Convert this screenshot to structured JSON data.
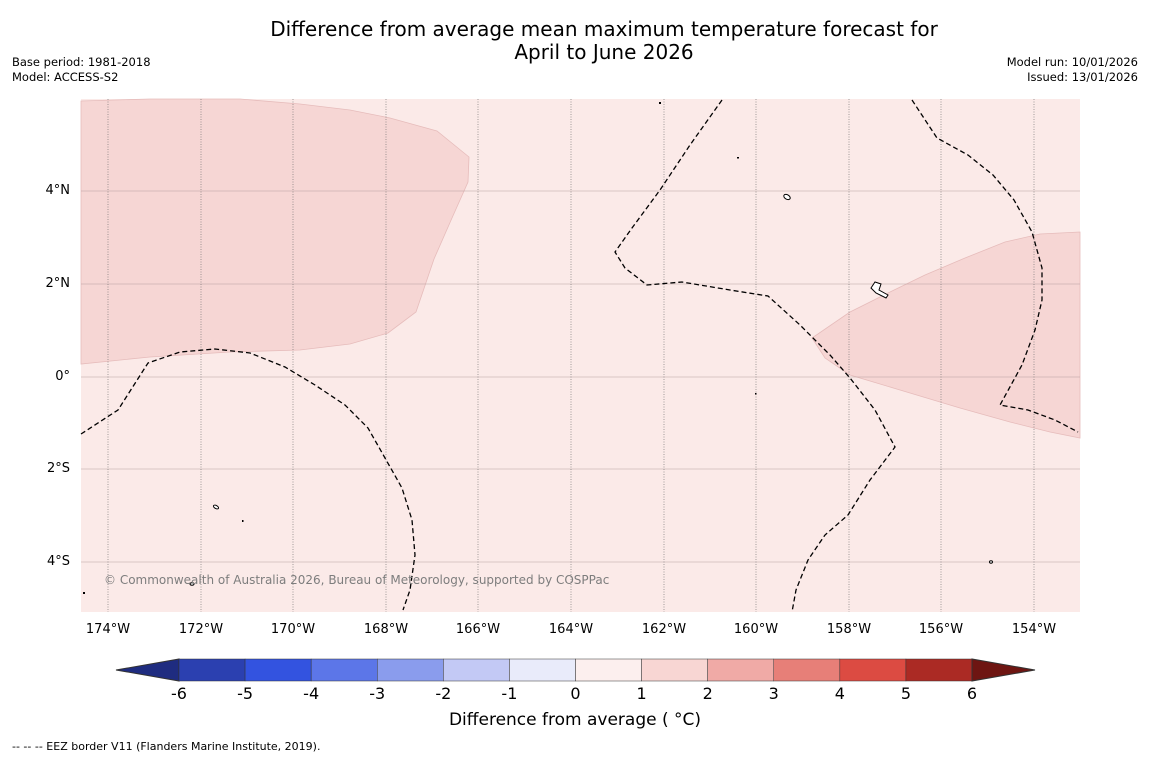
{
  "title": {
    "line1": "Difference from average mean maximum temperature forecast for",
    "line2": "April to June 2026"
  },
  "meta": {
    "base_period": "Base period: 1981-2018",
    "model": "Model: ACCESS-S2",
    "model_run": "Model run: 10/01/2026",
    "issued": "Issued: 13/01/2026"
  },
  "map": {
    "copyright": "© Commonwealth of Australia 2026, Bureau of Meteorology, supported by COSPPac",
    "lat_labels": [
      "4°N",
      "2°N",
      "0°",
      "2°S",
      "4°S"
    ],
    "lon_labels": [
      "174°W",
      "172°W",
      "170°W",
      "168°W",
      "166°W",
      "164°W",
      "162°W",
      "160°W",
      "158°W",
      "156°W",
      "154°W"
    ],
    "colors": {
      "background_anomaly": "#fbeae8",
      "warm_anomaly": "#f6d6d4",
      "gridline": "#b8a0a0",
      "eez_border": "#000000"
    }
  },
  "colorbar": {
    "title": "Difference from average ( °C)",
    "ticks": [
      "-6",
      "-5",
      "-4",
      "-3",
      "-2",
      "-1",
      "0",
      "1",
      "2",
      "3",
      "4",
      "5",
      "6"
    ],
    "colors": [
      "#1f2c80",
      "#2b40b0",
      "#3353e0",
      "#5c76e8",
      "#8a9ced",
      "#c3c9f5",
      "#e9ebfa",
      "#fcefee",
      "#f8d6d3",
      "#f0aaa6",
      "#e77f78",
      "#dc4b42",
      "#ab2a24",
      "#6e1512"
    ]
  },
  "footer": {
    "legend": "--  --  -- EEZ border V11 (Flanders Marine Institute, 2019)."
  }
}
